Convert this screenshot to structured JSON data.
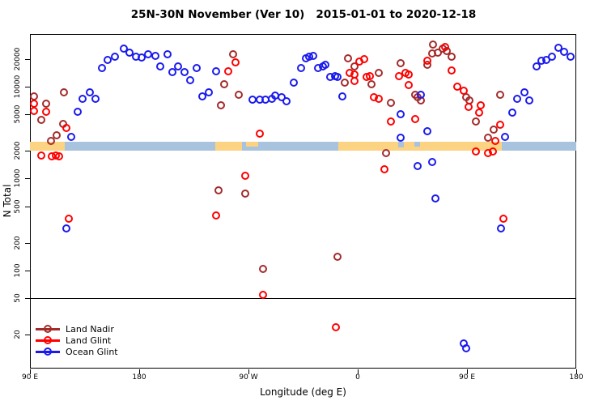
{
  "title": "25N-30N November (Ver 10)   2015-01-01 to 2020-12-18",
  "axes": {
    "x_label": "Longitude (deg E)",
    "y_label": "N Total"
  },
  "colors": {
    "land_nadir": "#A32B2B",
    "land_glint": "#FF0000",
    "ocean_glint": "#1A1AEE",
    "band_ocean": "#A8C3DE",
    "band_land": "#FBD382",
    "axis": "#000000"
  },
  "map_band": {
    "description": "latitude-band surface map strip: ocean vs land along longitude",
    "top_value": 2500,
    "bottom_value": 2000,
    "ocean_base": {
      "from": 90,
      "to": 540
    },
    "land_segments": [
      {
        "from": 90,
        "to": 118.7,
        "extent": "full"
      },
      {
        "from": 242.7,
        "to": 264.7,
        "extent": "full"
      },
      {
        "from": 268,
        "to": 278,
        "extent": "top"
      },
      {
        "from": 344,
        "to": 478.7,
        "extent": "full"
      }
    ],
    "ocean_notches": [
      {
        "from": 393.3,
        "to": 398,
        "depth": 0.6
      },
      {
        "from": 406.5,
        "to": 411.5,
        "depth": 0.5
      }
    ]
  },
  "chart_data": {
    "type": "scatter",
    "title": "25N-30N November (Ver 10)   2015-01-01 to 2020-12-18",
    "xlabel": "Longitude (deg E)",
    "ylabel": "N Total",
    "y_scale": "log10",
    "ylim": [
      11,
      40000
    ],
    "x_axis_note": "x spans 450 deg of longitude wrapping: 90E - 180 - 90W - 0 - 90E - 180",
    "x_tick_lons": [
      90,
      180,
      270,
      360,
      450,
      540
    ],
    "x_tick_labels": [
      "90 E",
      "180",
      "90 W",
      "0",
      "90 E",
      "180"
    ],
    "y_tick_values": [
      20,
      50,
      100,
      200,
      500,
      1000,
      2000,
      5000,
      10000,
      20000
    ],
    "threshold_value": 50,
    "legend_position": "bottom-left",
    "series": [
      {
        "name": "Land Nadir",
        "color_key": "land_nadir",
        "points": [
          [
            93,
            7900
          ],
          [
            103,
            6550
          ],
          [
            118,
            8700
          ],
          [
            99,
            4350
          ],
          [
            117,
            3940
          ],
          [
            112,
            2960
          ],
          [
            107,
            2570
          ],
          [
            257,
            22600
          ],
          [
            250,
            10600
          ],
          [
            262,
            8180
          ],
          [
            247,
            6280
          ],
          [
            245,
            740
          ],
          [
            267,
            685
          ],
          [
            282,
            104
          ],
          [
            352,
            20400
          ],
          [
            357,
            16700
          ],
          [
            349,
            11100
          ],
          [
            371,
            10600
          ],
          [
            377,
            14200
          ],
          [
            387,
            6670
          ],
          [
            383,
            1890
          ],
          [
            343,
            140
          ],
          [
            395,
            18100
          ],
          [
            422,
            28800
          ],
          [
            430,
            26000
          ],
          [
            433,
            24500
          ],
          [
            421,
            23000
          ],
          [
            426,
            23500
          ],
          [
            437,
            21200
          ],
          [
            417,
            17350
          ],
          [
            407,
            8180
          ],
          [
            409,
            7690
          ],
          [
            412,
            7100
          ],
          [
            449,
            7690
          ],
          [
            452,
            7100
          ],
          [
            457,
            4180
          ],
          [
            467,
            2790
          ],
          [
            477,
            8180
          ],
          [
            472,
            3410
          ]
        ]
      },
      {
        "name": "Land Glint",
        "color_key": "land_glint",
        "points": [
          [
            93,
            6550
          ],
          [
            93,
            5450
          ],
          [
            103,
            5330
          ],
          [
            120,
            3560
          ],
          [
            99,
            1780
          ],
          [
            108,
            1750
          ],
          [
            111,
            1780
          ],
          [
            114,
            1750
          ],
          [
            122,
            365
          ],
          [
            243,
            395
          ],
          [
            259,
            18450
          ],
          [
            253,
            14750
          ],
          [
            279,
            3080
          ],
          [
            267,
            1070
          ],
          [
            282,
            54
          ],
          [
            361,
            18800
          ],
          [
            365,
            20000
          ],
          [
            353,
            14200
          ],
          [
            357,
            13600
          ],
          [
            357,
            11600
          ],
          [
            367,
            12800
          ],
          [
            370,
            13050
          ],
          [
            373,
            7690
          ],
          [
            377,
            7380
          ],
          [
            387,
            4180
          ],
          [
            394,
            13050
          ],
          [
            382,
            1260
          ],
          [
            342,
            24
          ],
          [
            417,
            19200
          ],
          [
            432,
            27100
          ],
          [
            437,
            15000
          ],
          [
            399,
            14200
          ],
          [
            402,
            13600
          ],
          [
            402,
            10450
          ],
          [
            442,
            10000
          ],
          [
            447,
            9060
          ],
          [
            451,
            6030
          ],
          [
            461,
            6280
          ],
          [
            460,
            5220
          ],
          [
            407,
            4450
          ],
          [
            457,
            1970
          ],
          [
            467,
            1890
          ],
          [
            473,
            2570
          ],
          [
            477,
            3860
          ],
          [
            471,
            1970
          ],
          [
            480,
            365
          ]
        ]
      },
      {
        "name": "Ocean Glint",
        "color_key": "ocean_glint",
        "points": [
          [
            149,
            16000
          ],
          [
            154,
            19600
          ],
          [
            160,
            21200
          ],
          [
            167,
            26000
          ],
          [
            172,
            23500
          ],
          [
            177,
            21200
          ],
          [
            182,
            20800
          ],
          [
            187,
            22600
          ],
          [
            193,
            21700
          ],
          [
            197,
            16700
          ],
          [
            203,
            22600
          ],
          [
            207,
            14500
          ],
          [
            212,
            16700
          ],
          [
            217,
            14500
          ],
          [
            222,
            11800
          ],
          [
            227,
            16000
          ],
          [
            232,
            7850
          ],
          [
            237,
            8700
          ],
          [
            243,
            14700
          ],
          [
            139,
            8700
          ],
          [
            144,
            7380
          ],
          [
            133,
            7380
          ],
          [
            129,
            5330
          ],
          [
            124,
            2840
          ],
          [
            120,
            286
          ],
          [
            273,
            7240
          ],
          [
            279,
            7240
          ],
          [
            284,
            7240
          ],
          [
            289,
            7380
          ],
          [
            292,
            8020
          ],
          [
            297,
            7690
          ],
          [
            301,
            6950
          ],
          [
            307,
            11100
          ],
          [
            313,
            16000
          ],
          [
            317,
            20400
          ],
          [
            320,
            21200
          ],
          [
            323,
            21700
          ],
          [
            327,
            16000
          ],
          [
            331,
            16700
          ],
          [
            333,
            17350
          ],
          [
            337,
            12800
          ],
          [
            341,
            13050
          ],
          [
            343,
            12800
          ],
          [
            347,
            7850
          ],
          [
            395,
            5020
          ],
          [
            395,
            2790
          ],
          [
            412,
            8180
          ],
          [
            417,
            3270
          ],
          [
            409,
            1370
          ],
          [
            421,
            1510
          ],
          [
            424,
            607
          ],
          [
            447,
            16
          ],
          [
            449,
            14
          ],
          [
            507,
            16700
          ],
          [
            511,
            19200
          ],
          [
            515,
            19600
          ],
          [
            520,
            21200
          ],
          [
            525,
            26600
          ],
          [
            530,
            24000
          ],
          [
            535,
            21200
          ],
          [
            491,
            7380
          ],
          [
            497,
            8700
          ],
          [
            501,
            7100
          ],
          [
            487,
            5220
          ],
          [
            481,
            2840
          ],
          [
            478,
            286
          ]
        ]
      }
    ]
  }
}
